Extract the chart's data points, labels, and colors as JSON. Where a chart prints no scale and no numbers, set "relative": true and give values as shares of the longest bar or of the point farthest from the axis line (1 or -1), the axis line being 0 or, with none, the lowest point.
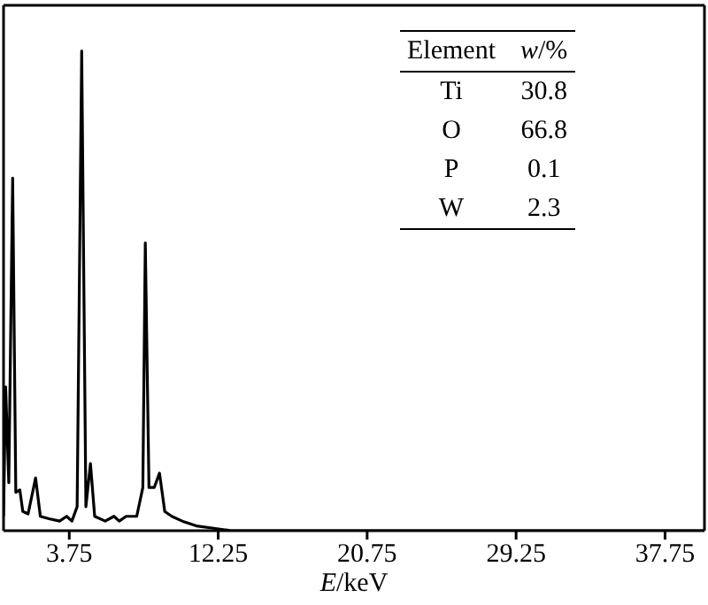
{
  "chart_data": {
    "type": "line",
    "relative": true,
    "xlabel": "E/keV",
    "xlim": [
      0,
      40
    ],
    "xticks": [
      3.75,
      12.25,
      20.75,
      29.25,
      37.75
    ],
    "marker": "none",
    "line_style": "solid",
    "x": [
      0,
      0.12,
      0.3,
      0.52,
      0.7,
      0.93,
      1.1,
      1.4,
      1.83,
      2.1,
      2.6,
      3.2,
      3.6,
      3.9,
      4.2,
      4.46,
      4.7,
      4.96,
      5.2,
      5.8,
      6.3,
      6.6,
      7.0,
      7.6,
      7.95,
      8.09,
      8.3,
      8.6,
      8.9,
      9.2,
      9.6,
      10.2,
      11.0,
      12.0,
      13.0,
      40
    ],
    "series": [
      {
        "color": "#000000",
        "values": [
          0.03,
          0.3,
          0.1,
          0.735,
          0.08,
          0.085,
          0.04,
          0.035,
          0.11,
          0.03,
          0.025,
          0.02,
          0.03,
          0.02,
          0.05,
          1.0,
          0.05,
          0.14,
          0.03,
          0.02,
          0.03,
          0.02,
          0.03,
          0.03,
          0.09,
          0.6,
          0.09,
          0.09,
          0.12,
          0.04,
          0.03,
          0.02,
          0.01,
          0.005,
          0,
          0
        ]
      }
    ],
    "annotations": [
      "Element",
      "w/%",
      "Ti",
      "30.8",
      "O",
      "66.8",
      "P",
      "0.1",
      "W",
      "2.3"
    ]
  }
}
